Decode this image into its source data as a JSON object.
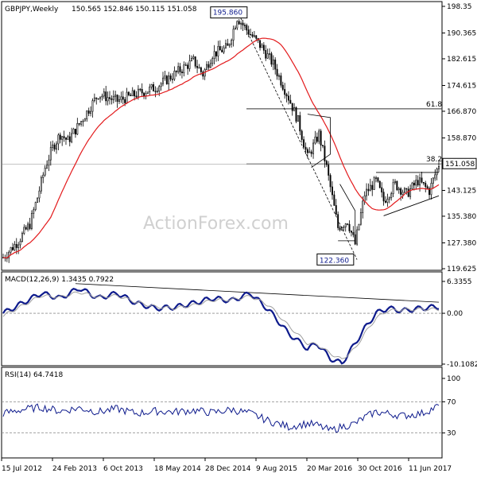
{
  "header": {
    "symbol": "GBPJPY,Weekly",
    "ohlc": "150.565 152.846 150.115 151.058"
  },
  "watermark": "ActionForex.com",
  "colors": {
    "candle": "#000000",
    "ma": "#e31a1c",
    "macd": "#0d1a8c",
    "signal": "#9e9e9e",
    "ref_line": "#888888",
    "price_box": "#ffffff"
  },
  "chart_data": [
    {
      "type": "candlestick",
      "panel": "price",
      "title": "GBPJPY,Weekly",
      "x_tick_labels": [
        "15 Jul 2012",
        "24 Feb 2013",
        "6 Oct 2013",
        "18 May 2014",
        "28 Dec 2014",
        "9 Aug 2015",
        "20 Mar 2016",
        "30 Oct 2016",
        "11 Jun 2017"
      ],
      "y_tick_labels": [
        "198.35",
        "190.365",
        "182.615",
        "174.615",
        "166.870",
        "158.870",
        "151.058",
        "143.125",
        "135.380",
        "127.380",
        "119.625"
      ],
      "ylim": [
        119.625,
        198.35
      ],
      "current_price": "151.058",
      "fib_labels": [
        "61.8",
        "38.2"
      ],
      "annotations": [
        "195.860",
        "122.360"
      ],
      "key_points": [
        {
          "week": 0,
          "price": 123
        },
        {
          "week": 8,
          "price": 128
        },
        {
          "week": 14,
          "price": 133
        },
        {
          "week": 18,
          "price": 141
        },
        {
          "week": 22,
          "price": 150
        },
        {
          "week": 26,
          "price": 156
        },
        {
          "week": 30,
          "price": 160
        },
        {
          "week": 34,
          "price": 158
        },
        {
          "week": 40,
          "price": 163
        },
        {
          "week": 50,
          "price": 172
        },
        {
          "week": 60,
          "price": 170
        },
        {
          "week": 70,
          "price": 172
        },
        {
          "week": 80,
          "price": 174
        },
        {
          "week": 90,
          "price": 178
        },
        {
          "week": 100,
          "price": 182
        },
        {
          "week": 105,
          "price": 178
        },
        {
          "week": 110,
          "price": 184
        },
        {
          "week": 118,
          "price": 186
        },
        {
          "week": 123,
          "price": 195
        },
        {
          "week": 130,
          "price": 190
        },
        {
          "week": 136,
          "price": 186
        },
        {
          "week": 142,
          "price": 181
        },
        {
          "week": 150,
          "price": 171
        },
        {
          "week": 155,
          "price": 164
        },
        {
          "week": 160,
          "price": 153
        },
        {
          "week": 166,
          "price": 160
        },
        {
          "week": 170,
          "price": 150
        },
        {
          "week": 176,
          "price": 132
        },
        {
          "week": 181,
          "price": 134
        },
        {
          "week": 185,
          "price": 127
        },
        {
          "week": 190,
          "price": 142
        },
        {
          "week": 196,
          "price": 146
        },
        {
          "week": 200,
          "price": 140
        },
        {
          "week": 206,
          "price": 145
        },
        {
          "week": 212,
          "price": 142
        },
        {
          "week": 218,
          "price": 146
        },
        {
          "week": 224,
          "price": 143
        },
        {
          "week": 229,
          "price": 151
        }
      ]
    },
    {
      "type": "line",
      "panel": "macd",
      "title": "MACD(12,26,9) 1.3435 0.7922",
      "y_tick_labels": [
        "6.3355",
        "0.00",
        "-10.1082"
      ],
      "ylim": [
        -10.1082,
        6.3355
      ],
      "series": [
        {
          "name": "MACD",
          "points": [
            [
              0,
              0
            ],
            [
              10,
              2
            ],
            [
              20,
              4
            ],
            [
              30,
              3
            ],
            [
              40,
              5
            ],
            [
              50,
              3
            ],
            [
              60,
              4
            ],
            [
              70,
              2
            ],
            [
              80,
              1
            ],
            [
              90,
              1.2
            ],
            [
              100,
              2
            ],
            [
              110,
              3
            ],
            [
              120,
              2.5
            ],
            [
              130,
              4
            ],
            [
              140,
              0.5
            ],
            [
              150,
              -4
            ],
            [
              160,
              -7
            ],
            [
              165,
              -6
            ],
            [
              172,
              -9
            ],
            [
              178,
              -10
            ],
            [
              185,
              -6
            ],
            [
              190,
              -3
            ],
            [
              196,
              0
            ],
            [
              202,
              1
            ],
            [
              210,
              0.5
            ],
            [
              220,
              1
            ],
            [
              229,
              1.34
            ]
          ]
        },
        {
          "name": "Signal",
          "points": [
            [
              0,
              -0.5
            ],
            [
              10,
              1.5
            ],
            [
              20,
              3.5
            ],
            [
              30,
              3.2
            ],
            [
              40,
              4.2
            ],
            [
              50,
              3.2
            ],
            [
              60,
              3.5
            ],
            [
              70,
              2.2
            ],
            [
              80,
              1.3
            ],
            [
              90,
              1
            ],
            [
              100,
              1.6
            ],
            [
              110,
              2.6
            ],
            [
              120,
              2.7
            ],
            [
              130,
              3.4
            ],
            [
              140,
              1.5
            ],
            [
              150,
              -2.5
            ],
            [
              160,
              -6
            ],
            [
              165,
              -6.2
            ],
            [
              172,
              -8
            ],
            [
              178,
              -9.2
            ],
            [
              185,
              -7
            ],
            [
              190,
              -4
            ],
            [
              196,
              -1
            ],
            [
              202,
              0.5
            ],
            [
              210,
              0.7
            ],
            [
              220,
              0.8
            ],
            [
              229,
              0.79
            ]
          ]
        }
      ]
    },
    {
      "type": "line",
      "panel": "rsi",
      "title": "RSI(14) 64.7418",
      "y_tick_labels": [
        "100",
        "70",
        "30",
        "0"
      ],
      "ylim": [
        0,
        100
      ],
      "series": [
        {
          "name": "RSI",
          "points": [
            [
              0,
              55
            ],
            [
              10,
              60
            ],
            [
              20,
              63
            ],
            [
              30,
              58
            ],
            [
              40,
              62
            ],
            [
              50,
              57
            ],
            [
              60,
              61
            ],
            [
              70,
              55
            ],
            [
              80,
              58
            ],
            [
              90,
              57
            ],
            [
              100,
              59
            ],
            [
              110,
              56
            ],
            [
              120,
              60
            ],
            [
              130,
              55
            ],
            [
              140,
              45
            ],
            [
              150,
              38
            ],
            [
              160,
              42
            ],
            [
              165,
              40
            ],
            [
              172,
              33
            ],
            [
              178,
              38
            ],
            [
              185,
              42
            ],
            [
              190,
              50
            ],
            [
              196,
              57
            ],
            [
              202,
              55
            ],
            [
              210,
              52
            ],
            [
              220,
              55
            ],
            [
              229,
              64.74
            ]
          ]
        }
      ]
    }
  ]
}
